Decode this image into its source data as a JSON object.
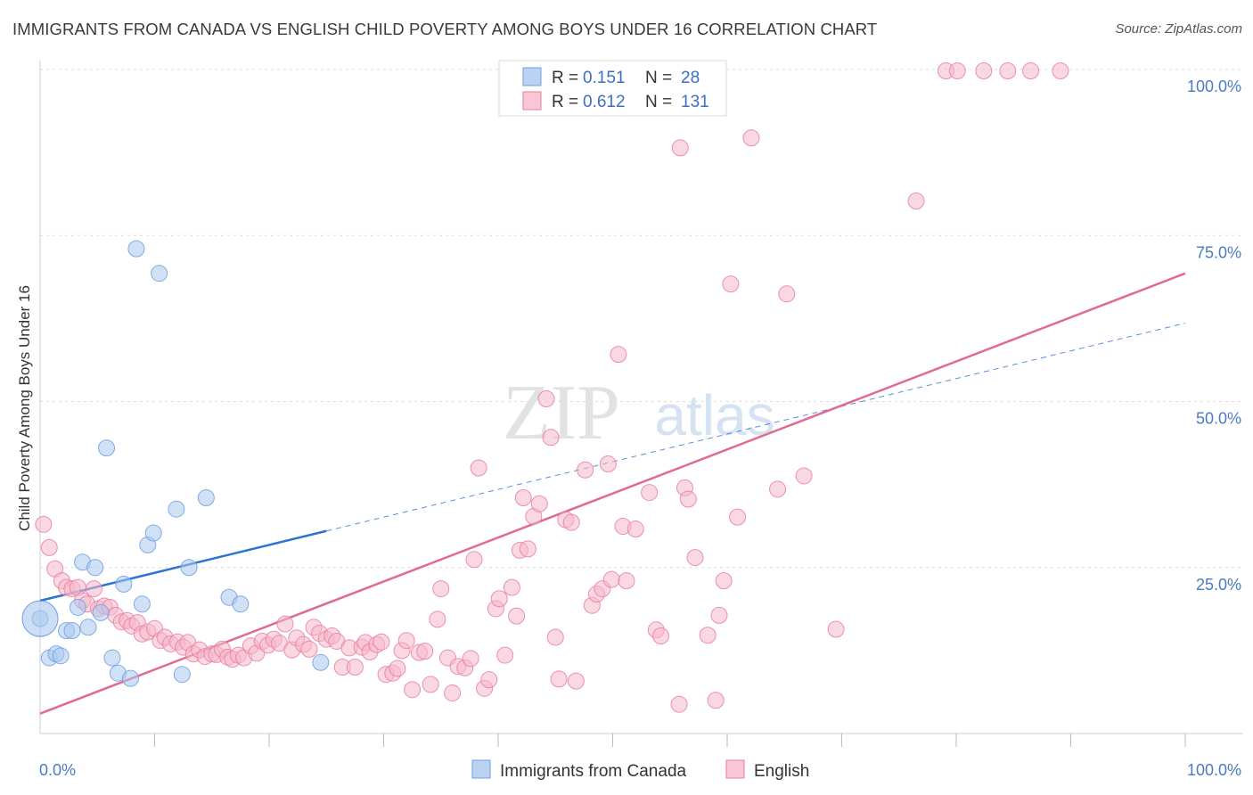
{
  "title": "IMMIGRANTS FROM CANADA VS ENGLISH CHILD POVERTY AMONG BOYS UNDER 16 CORRELATION CHART",
  "source": "Source: ZipAtlas.com",
  "watermark": {
    "zip": "ZIP",
    "atlas": "atlas"
  },
  "legend": {
    "r_label": "R =",
    "n_label": "N =",
    "entries": [
      {
        "name": "Immigrants from Canada",
        "r": "0.151",
        "n": "28",
        "color": "#a9c8ef"
      },
      {
        "name": "English",
        "r": "0.612",
        "n": "131",
        "color": "#f6b8cb"
      }
    ]
  },
  "chart_data": {
    "type": "scatter",
    "title": "IMMIGRANTS FROM CANADA VS ENGLISH CHILD POVERTY AMONG BOYS UNDER 16 CORRELATION CHART",
    "xlabel": "",
    "ylabel": "Child Poverty Among Boys Under 16",
    "xlim": [
      0,
      100
    ],
    "ylim": [
      0,
      100
    ],
    "x_tick_labels": [
      "0.0%",
      "100.0%"
    ],
    "y_ticks": [
      25,
      50,
      75,
      100
    ],
    "y_tick_labels": [
      "25.0%",
      "50.0%",
      "75.0%",
      "100.0%"
    ],
    "grid": true,
    "series": [
      {
        "name": "Immigrants from Canada",
        "color": "#6f9fe0",
        "fill": "#a9c8ef",
        "trend": {
          "x0": 0,
          "y0": 20,
          "x1": 25,
          "y1": 30.5,
          "dashed_to_x": 100,
          "dashed_to_y": 61.8,
          "color": "#2e73d0"
        },
        "points": [
          [
            0,
            17.3
          ],
          [
            0.8,
            11.4
          ],
          [
            1.4,
            12
          ],
          [
            1.8,
            11.7
          ],
          [
            2.3,
            15.5
          ],
          [
            2.8,
            15.5
          ],
          [
            3.3,
            19
          ],
          [
            3.7,
            25.8
          ],
          [
            4.2,
            16
          ],
          [
            4.8,
            25
          ],
          [
            5.3,
            18.2
          ],
          [
            5.8,
            43
          ],
          [
            6.3,
            11.4
          ],
          [
            6.8,
            9.1
          ],
          [
            7.3,
            22.5
          ],
          [
            7.9,
            8.3
          ],
          [
            8.4,
            73
          ],
          [
            8.9,
            19.5
          ],
          [
            9.4,
            28.4
          ],
          [
            9.9,
            30.2
          ],
          [
            10.4,
            69.3
          ],
          [
            11.9,
            33.8
          ],
          [
            12.4,
            8.9
          ],
          [
            13,
            25
          ],
          [
            14.5,
            35.5
          ],
          [
            16.5,
            20.5
          ],
          [
            17.5,
            19.5
          ],
          [
            24.5,
            10.7
          ]
        ]
      },
      {
        "name": "English",
        "color": "#e77fa0",
        "fill": "#f6b8cb",
        "trend": {
          "x0": 0,
          "y0": 3,
          "x1": 100,
          "y1": 69.3,
          "color": "#e06a92"
        },
        "points": [
          [
            0.3,
            31.5
          ],
          [
            0.8,
            28
          ],
          [
            1.3,
            24.8
          ],
          [
            1.9,
            23
          ],
          [
            2.3,
            22
          ],
          [
            2.8,
            21.8
          ],
          [
            3.3,
            22
          ],
          [
            3.7,
            20
          ],
          [
            4.1,
            19.5
          ],
          [
            4.7,
            21.8
          ],
          [
            5.1,
            18.8
          ],
          [
            5.6,
            19.2
          ],
          [
            6.1,
            19
          ],
          [
            6.6,
            17.8
          ],
          [
            7.1,
            16.8
          ],
          [
            7.6,
            17
          ],
          [
            8,
            16.2
          ],
          [
            8.5,
            16.7
          ],
          [
            8.9,
            15
          ],
          [
            9.4,
            15.3
          ],
          [
            10,
            15.8
          ],
          [
            10.5,
            14
          ],
          [
            10.9,
            14.5
          ],
          [
            11.4,
            13.5
          ],
          [
            12,
            13.8
          ],
          [
            12.5,
            13
          ],
          [
            12.9,
            13.7
          ],
          [
            13.4,
            12
          ],
          [
            13.9,
            12.6
          ],
          [
            14.4,
            11.6
          ],
          [
            15,
            12
          ],
          [
            15.4,
            11.9
          ],
          [
            15.9,
            12.7
          ],
          [
            16.4,
            11.5
          ],
          [
            16.8,
            11.2
          ],
          [
            17.3,
            11.8
          ],
          [
            17.8,
            11.4
          ],
          [
            18.4,
            13.2
          ],
          [
            18.9,
            12.1
          ],
          [
            19.4,
            13.9
          ],
          [
            19.9,
            13.3
          ],
          [
            20.4,
            14.2
          ],
          [
            20.9,
            13.6
          ],
          [
            21.4,
            16.5
          ],
          [
            22,
            12.6
          ],
          [
            22.4,
            14.4
          ],
          [
            23,
            13.4
          ],
          [
            23.5,
            12.7
          ],
          [
            23.9,
            16
          ],
          [
            24.4,
            15.1
          ],
          [
            25,
            14.2
          ],
          [
            25.5,
            14.7
          ],
          [
            25.9,
            13.9
          ],
          [
            26.4,
            10
          ],
          [
            27,
            12.9
          ],
          [
            27.5,
            10
          ],
          [
            28.1,
            13
          ],
          [
            28.4,
            13.7
          ],
          [
            28.8,
            12.3
          ],
          [
            29.4,
            13.4
          ],
          [
            29.8,
            13.8
          ],
          [
            30.2,
            8.9
          ],
          [
            30.8,
            9.1
          ],
          [
            31.2,
            9.8
          ],
          [
            31.6,
            12.5
          ],
          [
            32,
            14
          ],
          [
            32.5,
            6.6
          ],
          [
            33.1,
            12.2
          ],
          [
            33.6,
            12.4
          ],
          [
            34.1,
            7.4
          ],
          [
            34.7,
            17.2
          ],
          [
            35,
            21.8
          ],
          [
            35.6,
            11.4
          ],
          [
            36,
            6.1
          ],
          [
            36.5,
            10.1
          ],
          [
            37.1,
            9.9
          ],
          [
            37.6,
            11.3
          ],
          [
            37.9,
            26.2
          ],
          [
            38.3,
            40
          ],
          [
            38.8,
            6.8
          ],
          [
            39.2,
            8.1
          ],
          [
            39.8,
            18.8
          ],
          [
            40.1,
            20.3
          ],
          [
            40.6,
            11.8
          ],
          [
            41.2,
            22
          ],
          [
            41.6,
            17.7
          ],
          [
            41.9,
            27.6
          ],
          [
            42.2,
            35.5
          ],
          [
            42.6,
            27.8
          ],
          [
            43.1,
            32.7
          ],
          [
            43.6,
            34.6
          ],
          [
            44.2,
            50.4
          ],
          [
            44.6,
            44.6
          ],
          [
            45,
            14.5
          ],
          [
            45.3,
            8.2
          ],
          [
            45.9,
            32.2
          ],
          [
            46.4,
            31.8
          ],
          [
            46.8,
            7.9
          ],
          [
            47.6,
            39.7
          ],
          [
            48.2,
            19.3
          ],
          [
            48.6,
            21
          ],
          [
            49.1,
            21.8
          ],
          [
            49.6,
            40.6
          ],
          [
            49.9,
            23.2
          ],
          [
            50.5,
            57.1
          ],
          [
            50.9,
            31.2
          ],
          [
            51.2,
            23
          ],
          [
            52,
            30.8
          ],
          [
            53.2,
            36.3
          ],
          [
            53.8,
            15.6
          ],
          [
            54.2,
            14.7
          ],
          [
            55.8,
            4.4
          ],
          [
            56.3,
            37
          ],
          [
            56.6,
            35.3
          ],
          [
            57.2,
            26.5
          ],
          [
            58.3,
            14.8
          ],
          [
            59,
            5
          ],
          [
            59.3,
            17.8
          ],
          [
            59.7,
            23
          ],
          [
            60.3,
            67.7
          ],
          [
            60.9,
            32.6
          ],
          [
            62.1,
            89.7
          ],
          [
            64.4,
            36.8
          ],
          [
            65.2,
            66.2
          ],
          [
            66.7,
            38.8
          ],
          [
            69.5,
            15.7
          ],
          [
            76.5,
            80.2
          ],
          [
            79.1,
            99.8
          ],
          [
            80.1,
            99.8
          ],
          [
            82.4,
            99.8
          ],
          [
            84.5,
            99.8
          ],
          [
            86.5,
            99.8
          ],
          [
            89.1,
            99.8
          ],
          [
            55.9,
            88.2
          ]
        ]
      }
    ],
    "bubble": {
      "series": "Immigrants from Canada",
      "x": 0,
      "y": 17.3,
      "size": "large"
    }
  },
  "axes": {
    "y_title": "Child Poverty Among Boys Under 16"
  }
}
